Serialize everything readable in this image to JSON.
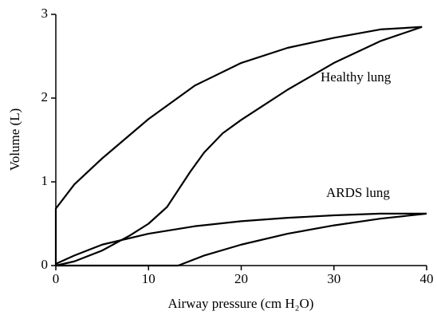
{
  "chart_data": {
    "type": "line",
    "x_label": "Airway pressure (cm H₂O)",
    "y_label": "Volume (L)",
    "xlim": [
      0,
      40
    ],
    "ylim": [
      0,
      3
    ],
    "xticks": [
      0,
      10,
      20,
      30,
      40
    ],
    "yticks": [
      0,
      1,
      2,
      3
    ],
    "grid": false,
    "series": [
      {
        "color": "#000000",
        "x": [
          0,
          2,
          5,
          8,
          10,
          12,
          14.5,
          16,
          18,
          20,
          25,
          30,
          35,
          39.5
        ],
        "values": [
          0,
          0.05,
          0.18,
          0.36,
          0.5,
          0.7,
          1.12,
          1.35,
          1.58,
          1.74,
          2.1,
          2.42,
          2.68,
          2.85
        ]
      },
      {
        "color": "#000000",
        "x": [
          39.5,
          35,
          30,
          25,
          20,
          15,
          10,
          5,
          2,
          0,
          0
        ],
        "values": [
          2.85,
          2.82,
          2.72,
          2.6,
          2.42,
          2.15,
          1.75,
          1.28,
          0.97,
          0.68,
          0
        ]
      },
      {
        "color": "#000000",
        "x": [
          0,
          13.2,
          16,
          20,
          25,
          30,
          35,
          40
        ],
        "values": [
          0,
          0,
          0.12,
          0.25,
          0.38,
          0.48,
          0.56,
          0.62
        ]
      },
      {
        "color": "#000000",
        "x": [
          40,
          35,
          30,
          25,
          20,
          15,
          10,
          5,
          2,
          0
        ],
        "values": [
          0.62,
          0.62,
          0.6,
          0.57,
          0.53,
          0.47,
          0.38,
          0.25,
          0.12,
          0.02
        ]
      }
    ],
    "annotations": [
      "Healthy lung",
      "ARDS lung"
    ]
  }
}
